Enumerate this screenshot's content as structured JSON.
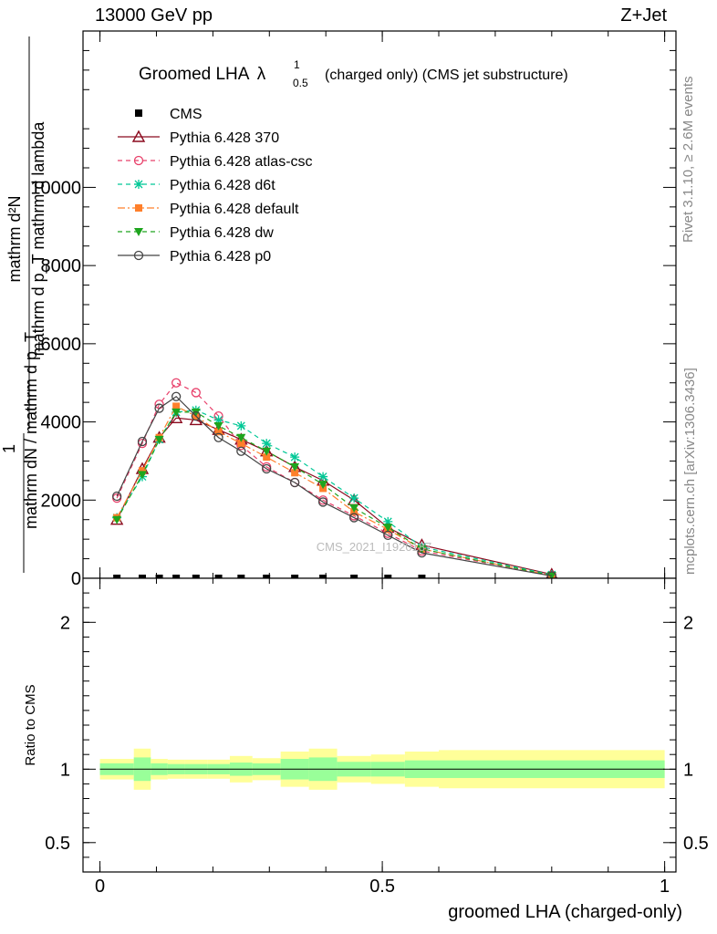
{
  "header": {
    "left": "13000 GeV pp",
    "right": "Z+Jet"
  },
  "side": {
    "rivet": "Rivet 3.1.10, ≥ 2.6M events",
    "mcplots": "mcplots.cern.ch [arXiv:1306.3436]"
  },
  "chart_data": [
    {
      "type": "line",
      "title_main": "Groomed LHA",
      "title_sym": "λ",
      "title_sub": "0.5",
      "title_sup": "1",
      "title_rest": "(charged only) (CMS jet substructure)",
      "ylabel_numerator": "mathrm d²N",
      "ylabel_denominator": "mathrm d p_T mathrm d lambda",
      "ylabel_one": "1",
      "ylabel_fraction": "mathrm dN / mathrm d p_T",
      "ylim": [
        0,
        14000
      ],
      "yticks": [
        0,
        2000,
        4000,
        6000,
        8000,
        10000
      ],
      "ytick_labels": [
        "0",
        "2000",
        "4000",
        "6000",
        "8000",
        "10000"
      ],
      "watermark": "CMS_2021_I1920187",
      "legend_position": "top-left",
      "x": [
        0.03,
        0.075,
        0.105,
        0.135,
        0.17,
        0.21,
        0.25,
        0.295,
        0.345,
        0.395,
        0.45,
        0.51,
        0.57,
        0.8
      ],
      "series": [
        {
          "name": "CMS",
          "color": "#000000",
          "marker": "square",
          "values": [
            0,
            0,
            0,
            0,
            0,
            0,
            0,
            0,
            0,
            0,
            0,
            0,
            0,
            null
          ]
        },
        {
          "name": "Pythia 6.428 370",
          "color": "#8b0a1e",
          "marker": "triangle-open",
          "dash": "",
          "values": [
            1500,
            2800,
            3600,
            4100,
            4050,
            3800,
            3550,
            3250,
            2850,
            2500,
            2000,
            1300,
            850,
            100
          ]
        },
        {
          "name": "Pythia 6.428 atlas-csc",
          "color": "#e8406a",
          "marker": "circle-open",
          "dash": "5,4",
          "values": [
            2050,
            3450,
            4450,
            5000,
            4750,
            4150,
            3400,
            2850,
            2450,
            2000,
            1600,
            1150,
            700,
            80
          ]
        },
        {
          "name": "Pythia 6.428 d6t",
          "color": "#00c896",
          "marker": "asterisk",
          "dash": "5,4",
          "values": [
            1550,
            2600,
            3550,
            4250,
            4300,
            4050,
            3900,
            3450,
            3100,
            2600,
            2050,
            1450,
            800,
            90
          ]
        },
        {
          "name": "Pythia 6.428 default",
          "color": "#ff7f2a",
          "marker": "square",
          "dash": "8,3,2,3",
          "values": [
            1550,
            2750,
            3600,
            4400,
            4150,
            3750,
            3450,
            3100,
            2700,
            2300,
            1700,
            1250,
            750,
            70
          ]
        },
        {
          "name": "Pythia 6.428 dw",
          "color": "#1ea51e",
          "marker": "triangle-down",
          "dash": "5,4",
          "values": [
            1500,
            2650,
            3550,
            4250,
            4250,
            3900,
            3600,
            3250,
            2850,
            2400,
            1800,
            1300,
            750,
            70
          ]
        },
        {
          "name": "Pythia 6.428 p0",
          "color": "#444444",
          "marker": "circle-open",
          "dash": "",
          "values": [
            2100,
            3500,
            4350,
            4650,
            4150,
            3600,
            3250,
            2800,
            2450,
            1950,
            1550,
            1100,
            650,
            60
          ]
        }
      ]
    },
    {
      "type": "area",
      "ylabel": "Ratio to CMS",
      "xlabel": "groomed LHA (charged-only)",
      "ylim": [
        0.3,
        2.3
      ],
      "xlim": [
        -0.03,
        1.02
      ],
      "yticks": [
        0.5,
        1,
        2
      ],
      "ytick_labels": [
        "0.5",
        "1",
        "2"
      ],
      "xticks": [
        0,
        0.5,
        1
      ],
      "xtick_labels": [
        "0",
        "0.5",
        "1"
      ],
      "bins": [
        0.0,
        0.06,
        0.09,
        0.12,
        0.15,
        0.19,
        0.23,
        0.27,
        0.32,
        0.37,
        0.42,
        0.48,
        0.54,
        0.6,
        1.0
      ],
      "band_green_half": [
        0.04,
        0.08,
        0.04,
        0.035,
        0.035,
        0.035,
        0.045,
        0.04,
        0.07,
        0.08,
        0.05,
        0.05,
        0.06,
        0.06
      ],
      "band_yellow_half": [
        0.07,
        0.14,
        0.07,
        0.065,
        0.065,
        0.065,
        0.09,
        0.075,
        0.12,
        0.14,
        0.09,
        0.1,
        0.12,
        0.13
      ],
      "ref_value": 1
    }
  ]
}
